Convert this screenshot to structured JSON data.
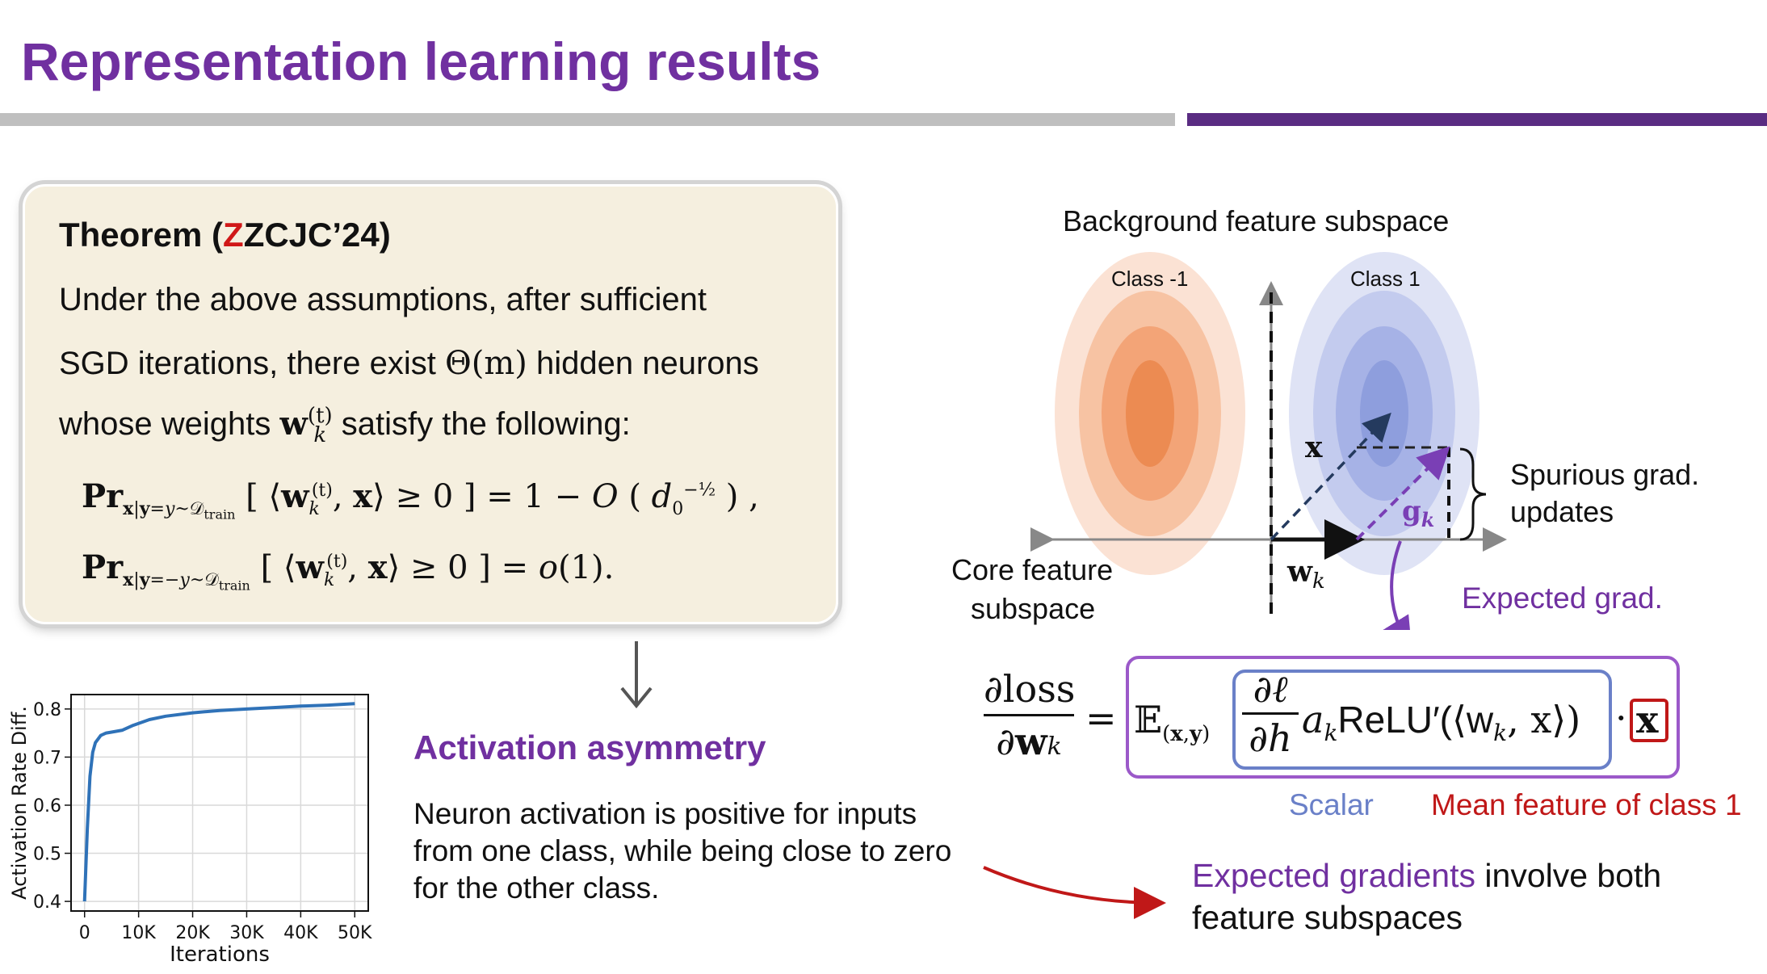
{
  "slide": {
    "title": "Representation learning results"
  },
  "theorem": {
    "head_prefix": "Theorem (",
    "head_red": "Z",
    "head_rest": "ZCJC’24)",
    "line1": "Under the above assumptions, after sufficient",
    "line2_a": "SGD iterations, there exist ",
    "line2_math": "Θ(m)",
    "line2_b": " hidden neurons",
    "line3_a": "whose weights ",
    "line3_b": " satisfy the following:",
    "eq1": "= 1 − O ( d₀^−½ ) ,",
    "eq2": "= o(1)."
  },
  "activation": {
    "title": "Activation asymmetry",
    "text": "Neuron activation is positive for inputs from one class, while being close to zero for the other class."
  },
  "chart_data": {
    "type": "line",
    "xlabel": "Iterations",
    "ylabel": "Activation Rate Diff.",
    "xlim": [
      -2500,
      52500
    ],
    "ylim": [
      0.38,
      0.83
    ],
    "x_ticks": [
      "0",
      "10K",
      "20K",
      "30K",
      "40K",
      "50K"
    ],
    "x_tick_values": [
      0,
      10000,
      20000,
      30000,
      40000,
      50000
    ],
    "y_ticks": [
      "0.4",
      "0.5",
      "0.6",
      "0.7",
      "0.8"
    ],
    "y_tick_values": [
      0.4,
      0.5,
      0.6,
      0.7,
      0.8
    ],
    "grid": true,
    "line_color": "#2f72b8",
    "series": [
      {
        "x": [
          0,
          500,
          1000,
          1500,
          2000,
          3000,
          4000,
          5000,
          7000,
          9000,
          12000,
          15000,
          20000,
          25000,
          30000,
          35000,
          40000,
          45000,
          50000
        ],
        "values": [
          0.4,
          0.55,
          0.66,
          0.71,
          0.73,
          0.745,
          0.75,
          0.752,
          0.756,
          0.766,
          0.778,
          0.785,
          0.792,
          0.797,
          0.8,
          0.803,
          0.806,
          0.808,
          0.811
        ]
      }
    ]
  },
  "diagram": {
    "bg_label": "Background feature subspace",
    "class_neg": "Class -1",
    "class_pos": "Class 1",
    "core_label_1": "Core feature",
    "core_label_2": "subspace",
    "spurious_1": "Spurious grad.",
    "spurious_2": "updates",
    "x_vec": "x",
    "w_vec": "w",
    "w_sub": "k",
    "g_vec": "g",
    "g_sub": "k",
    "orange": "#f08a4b",
    "blue": "#7b8fd6"
  },
  "formula": {
    "expected_grad": "Expected grad.",
    "scalar": "Scalar",
    "mean_feature": "Mean feature of class 1",
    "relu": "ReLU′(⟨w",
    "relu_end": ", x⟩)"
  },
  "conclusion": {
    "highlight": "Expected gradients",
    "rest": " involve both feature subspaces"
  }
}
